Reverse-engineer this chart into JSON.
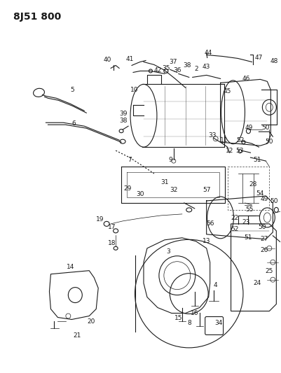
{
  "title": "8J51 800",
  "bg_color": "#ffffff",
  "line_color": "#1a1a1a",
  "title_fontsize": 10,
  "label_fontsize": 6.5,
  "fig_width": 4.01,
  "fig_height": 5.33,
  "dpi": 100
}
